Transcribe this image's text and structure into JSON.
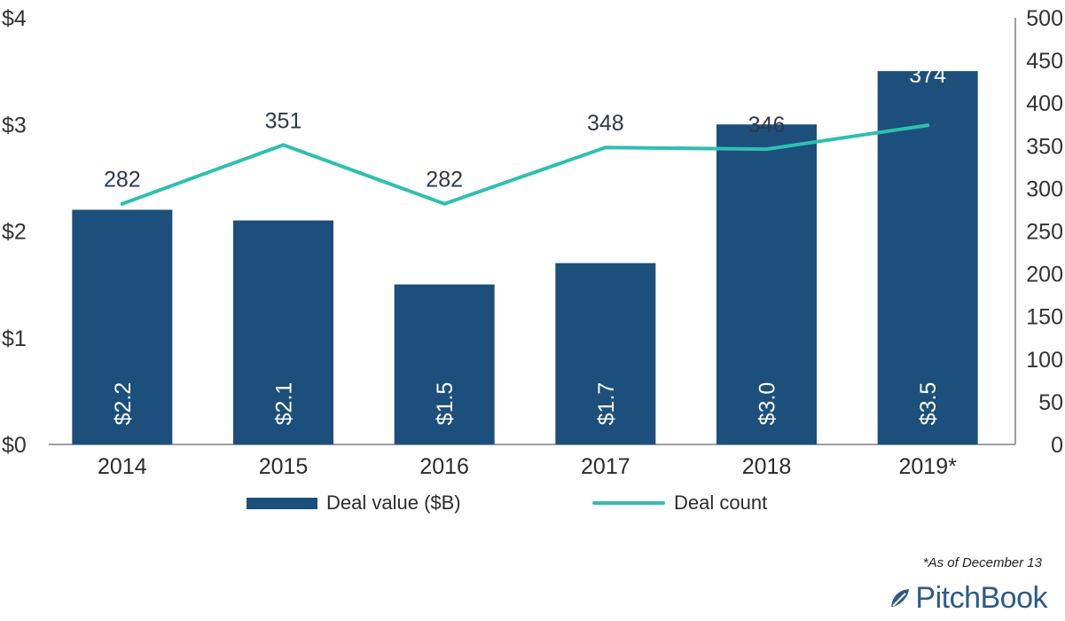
{
  "chart_data": {
    "type": "bar",
    "categories": [
      "2014",
      "2015",
      "2016",
      "2017",
      "2018",
      "2019*"
    ],
    "series": [
      {
        "name": "Deal value ($B)",
        "type": "bar",
        "axis": "left",
        "values": [
          2.2,
          2.1,
          1.5,
          1.7,
          3.0,
          3.5
        ],
        "labels": [
          "$2.2",
          "$2.1",
          "$1.5",
          "$1.7",
          "$3.0",
          "$3.5"
        ],
        "color": "#1c4f7c"
      },
      {
        "name": "Deal count",
        "type": "line",
        "axis": "right",
        "values": [
          282,
          351,
          282,
          348,
          346,
          374
        ],
        "labels": [
          "282",
          "351",
          "282",
          "348",
          "346",
          "374"
        ],
        "color": "#2fbfb0"
      }
    ],
    "y_left": {
      "ylim": [
        0,
        4
      ],
      "ticks": [
        "$0",
        "$1",
        "$2",
        "$3",
        "$4"
      ],
      "tick_values": [
        0,
        1,
        2,
        3,
        4
      ]
    },
    "y_right": {
      "ylim": [
        0,
        500
      ],
      "ticks": [
        "0",
        "50",
        "100",
        "150",
        "200",
        "250",
        "300",
        "350",
        "400",
        "450",
        "500"
      ],
      "tick_values": [
        0,
        50,
        100,
        150,
        200,
        250,
        300,
        350,
        400,
        450,
        500
      ]
    },
    "legend_position": "bottom",
    "grid": false
  },
  "legend": {
    "bar_label": "Deal value ($B)",
    "line_label": "Deal count"
  },
  "footnote": "*As of December 13",
  "brand": {
    "name": "PitchBook",
    "color": "#2f5a86"
  },
  "colors": {
    "bar": "#1c4f7c",
    "line": "#2fbfb0",
    "text": "#2b2b2b",
    "count_label_dark": "#2b3a4a",
    "count_label_light": "#ffffff"
  }
}
